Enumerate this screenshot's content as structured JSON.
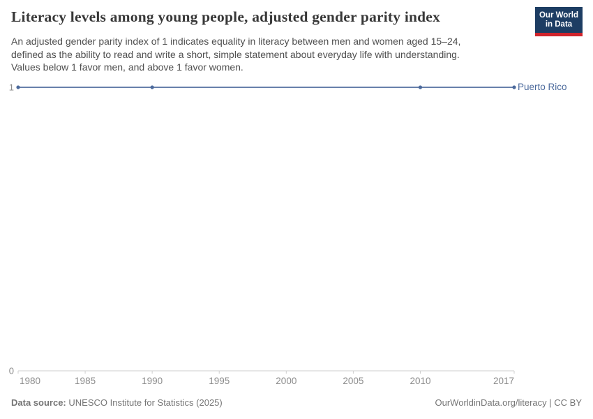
{
  "header": {
    "title": "Literacy levels among young people, adjusted gender parity index",
    "subtitle_lines": [
      "An adjusted gender parity index of 1 indicates equality in literacy between men and women aged 15–24,",
      "defined as the ability to read and write a short, simple statement about everyday life with understanding.",
      "Values below 1 favor men, and above 1 favor women."
    ]
  },
  "logo": {
    "line1": "Our World",
    "line2": "in Data",
    "bg_color": "#1d3d63",
    "accent_color": "#d0242c"
  },
  "chart_data": {
    "type": "line",
    "title": "Literacy levels among young people, adjusted gender parity index",
    "xlabel": "",
    "ylabel": "",
    "xlim": [
      1980,
      2017
    ],
    "ylim": [
      0,
      1
    ],
    "x_ticks": [
      1980,
      1985,
      1990,
      1995,
      2000,
      2005,
      2010,
      2017
    ],
    "y_ticks": [
      0,
      1
    ],
    "grid": false,
    "legend_position": "end-of-line entity label",
    "series": [
      {
        "name": "Puerto Rico",
        "color": "#4c6a9c",
        "x": [
          1980,
          1990,
          2010,
          2017
        ],
        "y": [
          1,
          1,
          1,
          1
        ]
      }
    ]
  },
  "footer": {
    "datasource_label": "Data source:",
    "datasource_value": "UNESCO Institute for Statistics (2025)",
    "right_text": "OurWorldinData.org/literacy | CC BY"
  }
}
